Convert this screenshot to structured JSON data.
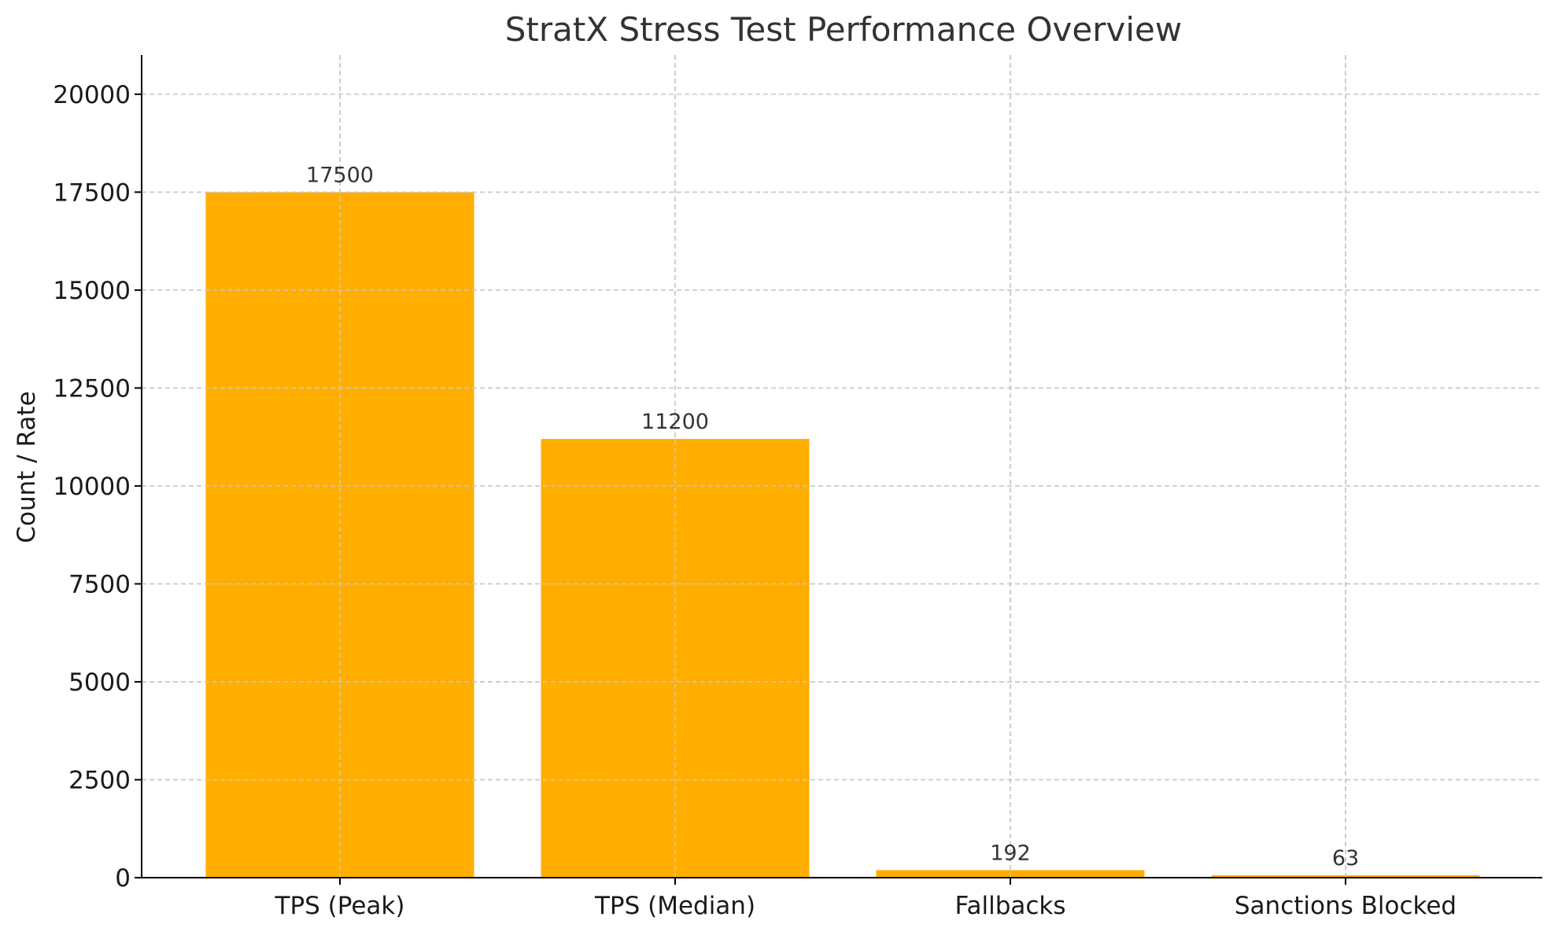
{
  "chart_data": {
    "type": "bar",
    "title": "StratX Stress Test Performance Overview",
    "xlabel": "",
    "ylabel": "Count / Rate",
    "categories": [
      "TPS (Peak)",
      "TPS (Median)",
      "Fallbacks",
      "Sanctions Blocked"
    ],
    "values": [
      17500,
      11200,
      192,
      63
    ],
    "data_labels": [
      "17500",
      "11200",
      "192",
      "63"
    ],
    "ylim": [
      0,
      21000
    ],
    "yticks": [
      0,
      2500,
      5000,
      7500,
      10000,
      12500,
      15000,
      17500,
      20000
    ],
    "ytick_labels": [
      "0",
      "2500",
      "5000",
      "7500",
      "10000",
      "12500",
      "15000",
      "17500",
      "20000"
    ],
    "grid": true,
    "bar_color": "#FFAE00"
  }
}
